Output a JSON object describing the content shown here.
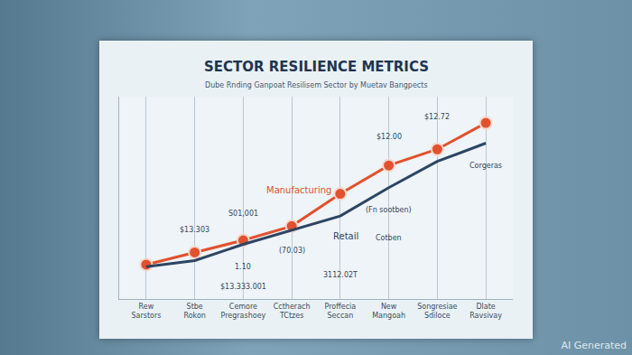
{
  "chart_data": {
    "type": "line",
    "title": "SECTOR RESILIENCE METRICS",
    "subtitle": "Dube Rnding Ganpoat Resilisem Sector by Muetav Bangpects",
    "categories": [
      "Rew Sarstors",
      "Stbe Rokon",
      "Cemore Pregrashoey",
      "Cctherach TCtzes",
      "Proffecia Seccan",
      "New Mangoah",
      "Songresiae Sdiloce",
      "Dlate Ravsivay"
    ],
    "series": [
      {
        "name": "Manufacturing",
        "color": "#e2512e",
        "marker": "circle",
        "line_style": "solid",
        "values": [
          17,
          23,
          29,
          36,
          52,
          66,
          74,
          87
        ]
      },
      {
        "name": "Retail",
        "color": "#2d4563",
        "line_style": "solid",
        "values": [
          16,
          19,
          27,
          34,
          41,
          55,
          68,
          77
        ]
      }
    ],
    "ylim": [
      0,
      100
    ],
    "grid": true,
    "tick_labels": "x",
    "annotations": [
      {
        "text": "S01,001",
        "x": "Cemore Pregrashoey",
        "y": 42
      },
      {
        "text": "$13.303",
        "x": "Stbe Rokon",
        "y": 34
      },
      {
        "text": "(70.03)",
        "x": "Cctherach TCtzes",
        "y": 24
      },
      {
        "text": "1.10",
        "x": "Cemore Pregrashoey",
        "y": 16
      },
      {
        "text": "$13.333.001",
        "x": "Cemore Pregrashoey",
        "y": 6
      },
      {
        "text": "3112.02T",
        "x": "Proffecia Seccan",
        "y": 12
      },
      {
        "text": "Cotben",
        "x": "New Mangoah",
        "y": 30
      },
      {
        "text": "(Fn sootben)",
        "x": "New Mangoah",
        "y": 44
      },
      {
        "text": "$12.00",
        "x": "New Mangoah",
        "y": 80
      },
      {
        "text": "$12.72",
        "x": "Songresiae Sdiloce",
        "y": 90
      },
      {
        "text": "Corgeras",
        "x": "Dlate Ravsivay",
        "y": 66
      }
    ],
    "footer": "AI Generated"
  }
}
